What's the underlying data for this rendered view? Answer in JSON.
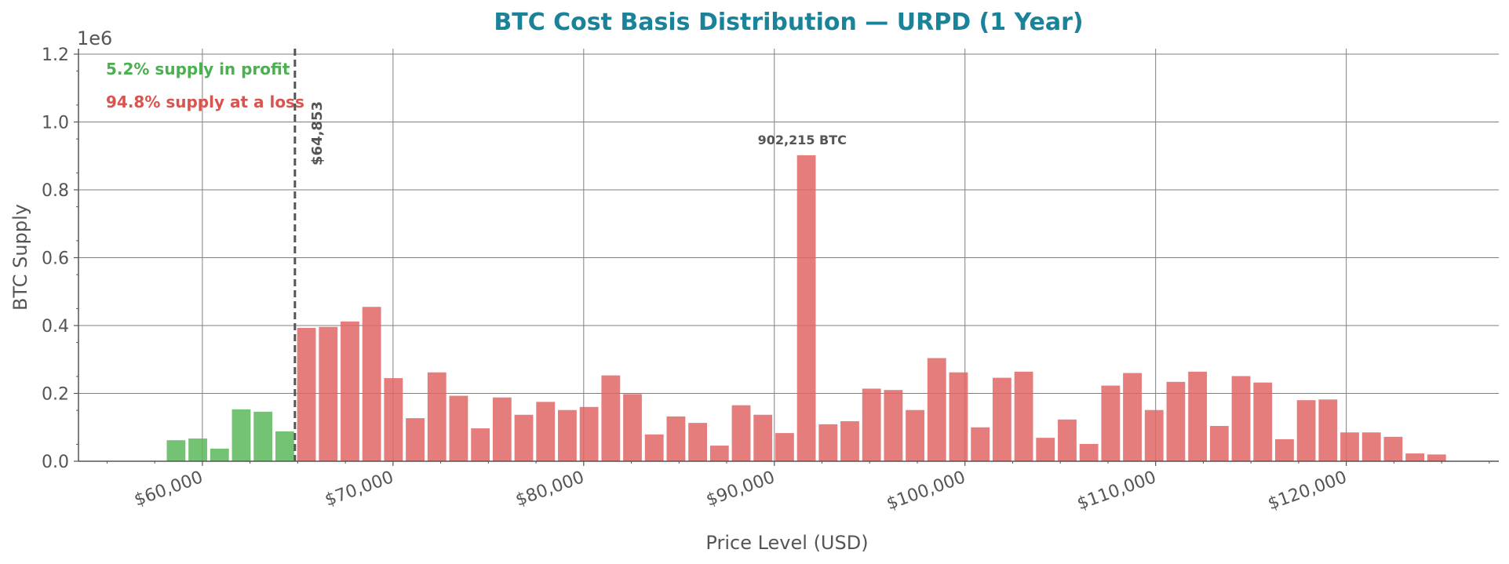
{
  "chart_data": {
    "type": "bar",
    "title": "BTC Cost Basis Distribution — URPD (1 Year)",
    "xlabel": "Price Level (USD)",
    "ylabel": "BTC Supply",
    "y_multiplier_label": "1e6",
    "xlim": [
      53500,
      128000
    ],
    "ylim": [
      0,
      1.2
    ],
    "y_ticks": [
      0.0,
      0.2,
      0.4,
      0.6,
      0.8,
      1.0,
      1.2
    ],
    "y_tick_labels": [
      "0.0",
      "0.2",
      "0.4",
      "0.6",
      "0.8",
      "1.0",
      "1.2"
    ],
    "x_ticks": [
      60000,
      70000,
      80000,
      90000,
      100000,
      110000,
      120000
    ],
    "x_tick_labels": [
      "$60,000",
      "$70,000",
      "$80,000",
      "$90,000",
      "$100,000",
      "$110,000",
      "$120,000"
    ],
    "bin_width": 1140,
    "grid": true,
    "current_price": 64853,
    "current_price_label": "$64,853",
    "profit_label": "5.2% supply in profit",
    "loss_label": "94.8% supply at a loss",
    "peak_label": "902,215 BTC",
    "peak_x": 91460,
    "colors": {
      "title": "#1a8299",
      "profit": "#5cb85c",
      "loss": "#e06666",
      "profit_text": "#4caf50",
      "loss_text": "#d9534f",
      "grid": "#7f7f7f",
      "axis": "#555555"
    },
    "series": [
      {
        "group": "profit",
        "x": [
          58620,
          59760,
          60900,
          62040,
          63180,
          64320
        ],
        "values": [
          0.062,
          0.067,
          0.037,
          0.153,
          0.146,
          0.088
        ]
      },
      {
        "group": "loss",
        "x": [
          65460,
          66600,
          67740,
          68880,
          70020,
          71160,
          72300,
          73440,
          74580,
          75720,
          76860,
          78000,
          79140,
          80280,
          81420,
          82560,
          83700,
          84840,
          85980,
          87120,
          88260,
          89400,
          90540,
          91680,
          92820,
          93960,
          95100,
          96240,
          97380,
          98520,
          99660,
          100800,
          101940,
          103080,
          104220,
          105360,
          106500,
          107640,
          108780,
          109920,
          111060,
          112200,
          113340,
          114480,
          115620,
          116760,
          117900,
          119040,
          120180,
          121320,
          122460,
          123600,
          124740
        ],
        "values": [
          0.393,
          0.396,
          0.412,
          0.455,
          0.245,
          0.127,
          0.262,
          0.193,
          0.097,
          0.188,
          0.137,
          0.175,
          0.151,
          0.16,
          0.253,
          0.198,
          0.079,
          0.132,
          0.113,
          0.046,
          0.165,
          0.137,
          0.083,
          0.902,
          0.109,
          0.118,
          0.214,
          0.21,
          0.151,
          0.304,
          0.262,
          0.1,
          0.246,
          0.264,
          0.069,
          0.123,
          0.051,
          0.223,
          0.26,
          0.151,
          0.234,
          0.264,
          0.104,
          0.251,
          0.232,
          0.065,
          0.18,
          0.182,
          0.085,
          0.085,
          0.072,
          0.023,
          0.02
        ]
      }
    ]
  }
}
